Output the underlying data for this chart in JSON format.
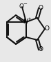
{
  "bg_color": "#e8e8e8",
  "bond_color": "#111111",
  "lw": 1.4,
  "figsize": [
    0.74,
    0.9
  ],
  "dpi": 100,
  "fs": 6.5,
  "xlim": [
    0,
    74
  ],
  "ylim": [
    0,
    90
  ]
}
